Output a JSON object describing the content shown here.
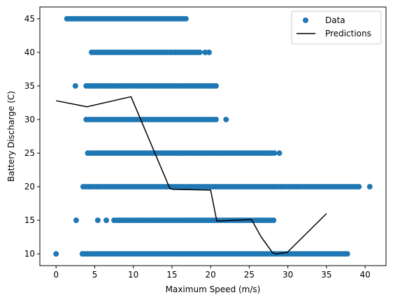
{
  "chart_data": {
    "type": "scatter",
    "xlabel": "Maximum Speed (m/s)",
    "ylabel": "Battery Discharge (C)",
    "xlim": [
      -2.1,
      42.7
    ],
    "ylim": [
      8.25,
      46.75
    ],
    "xticks": [
      0,
      5,
      10,
      15,
      20,
      25,
      30,
      35,
      40
    ],
    "yticks": [
      10,
      15,
      20,
      25,
      30,
      35,
      40,
      45
    ],
    "grid": false,
    "legend_position": "top-right",
    "colors": {
      "scatter": "#1f77b4",
      "line": "#000000"
    },
    "series": [
      {
        "name": "Data",
        "kind": "scatter",
        "rows": [
          {
            "y": 45,
            "segments": [
              [
                1.4,
                17.0
              ]
            ],
            "isolated": []
          },
          {
            "y": 40,
            "segments": [
              [
                4.6,
                18.8
              ]
            ],
            "isolated": [
              19.3,
              19.8
            ]
          },
          {
            "y": 35,
            "segments": [
              [
                3.9,
                21.0
              ]
            ],
            "isolated": [
              2.5
            ]
          },
          {
            "y": 30,
            "segments": [
              [
                3.9,
                20.8
              ]
            ],
            "isolated": [
              22.0
            ]
          },
          {
            "y": 25,
            "segments": [
              [
                4.1,
                28.5
              ]
            ],
            "isolated": [
              28.9
            ]
          },
          {
            "y": 20,
            "segments": [
              [
                3.5,
                39.5
              ]
            ],
            "isolated": [
              40.6
            ]
          },
          {
            "y": 15,
            "segments": [
              [
                7.5,
                28.2
              ]
            ],
            "isolated": [
              2.6,
              5.4,
              6.5
            ]
          },
          {
            "y": 10,
            "segments": [
              [
                3.4,
                37.9
              ]
            ],
            "isolated": [
              0.0
            ]
          }
        ]
      },
      {
        "name": "Predictions",
        "kind": "line",
        "points": [
          [
            0.0,
            32.8
          ],
          [
            4.0,
            31.9
          ],
          [
            9.7,
            33.4
          ],
          [
            14.7,
            19.8
          ],
          [
            15.1,
            19.6
          ],
          [
            20.0,
            19.5
          ],
          [
            20.8,
            14.9
          ],
          [
            25.3,
            15.1
          ],
          [
            26.5,
            12.6
          ],
          [
            28.0,
            10.2
          ],
          [
            28.4,
            10.0
          ],
          [
            29.9,
            10.2
          ],
          [
            35.0,
            16.0
          ]
        ]
      }
    ]
  }
}
